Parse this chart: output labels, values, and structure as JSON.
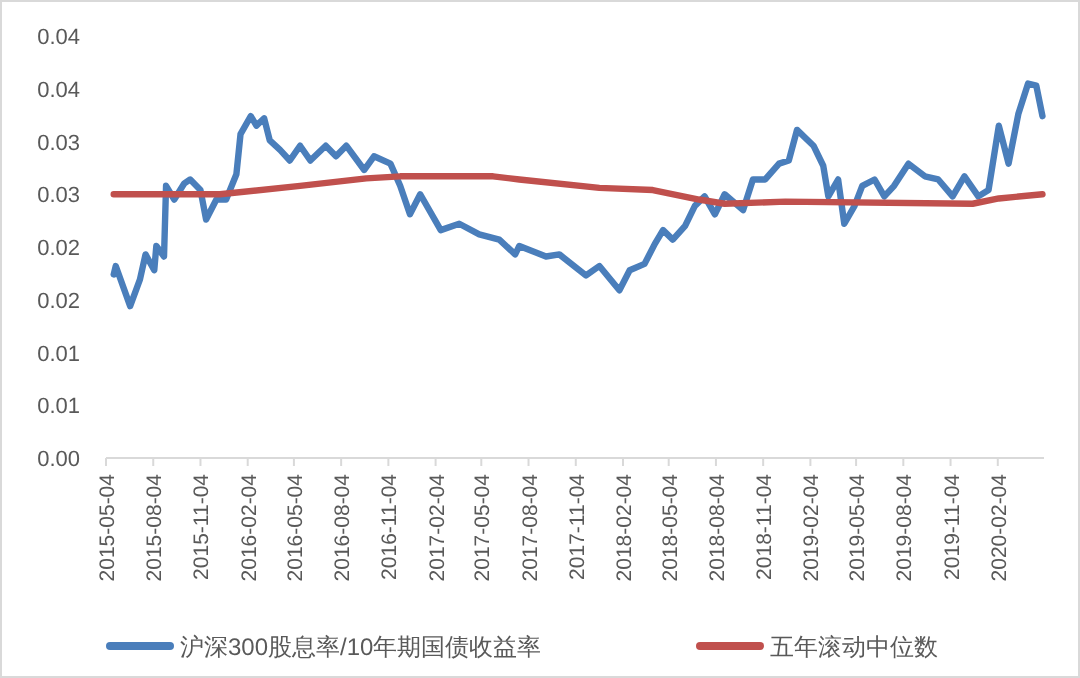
{
  "chart_data": {
    "type": "line",
    "xlim": [
      "2015-05-04",
      "2020-05-04"
    ],
    "ylim": [
      0,
      0.04
    ],
    "xticks": [
      "2015-05-04",
      "2015-08-04",
      "2015-11-04",
      "2016-02-04",
      "2016-05-04",
      "2016-08-04",
      "2016-11-04",
      "2017-02-04",
      "2017-05-04",
      "2017-08-04",
      "2017-11-04",
      "2018-02-04",
      "2018-05-04",
      "2018-08-04",
      "2018-11-04",
      "2019-02-04",
      "2019-05-04",
      "2019-08-04",
      "2019-11-04",
      "2020-02-04"
    ],
    "yticks": [
      {
        "value": 0,
        "label": "0.00"
      },
      {
        "value": 0.005,
        "label": "0.01"
      },
      {
        "value": 0.01,
        "label": "0.01"
      },
      {
        "value": 0.015,
        "label": "0.02"
      },
      {
        "value": 0.02,
        "label": "0.02"
      },
      {
        "value": 0.025,
        "label": "0.03"
      },
      {
        "value": 0.03,
        "label": "0.03"
      },
      {
        "value": 0.035,
        "label": "0.04"
      },
      {
        "value": 0.04,
        "label": "0.04"
      }
    ],
    "grid": false,
    "legend": "bottom",
    "marker": "none",
    "line_style": "solid",
    "series": [
      {
        "name": "沪深300股息率/10年期国债收益率",
        "color": "#4a7ebb",
        "x": [
          "2015-05-19",
          "2015-05-23",
          "2015-06-20",
          "2015-07-09",
          "2015-07-20",
          "2015-08-06",
          "2015-08-10",
          "2015-08-25",
          "2015-08-29",
          "2015-09-14",
          "2015-10-03",
          "2015-10-15",
          "2015-11-04",
          "2015-11-15",
          "2015-12-05",
          "2015-12-24",
          "2016-01-13",
          "2016-01-21",
          "2016-02-10",
          "2016-02-21",
          "2016-03-07",
          "2016-03-18",
          "2016-04-07",
          "2016-04-26",
          "2016-05-16",
          "2016-06-05",
          "2016-07-05",
          "2016-07-25",
          "2016-08-14",
          "2016-09-18",
          "2016-10-07",
          "2016-11-08",
          "2016-11-27",
          "2016-12-16",
          "2017-01-05",
          "2017-02-14",
          "2017-03-22",
          "2017-04-30",
          "2017-06-08",
          "2017-07-09",
          "2017-07-17",
          "2017-09-07",
          "2017-10-03",
          "2017-11-24",
          "2017-12-20",
          "2018-01-28",
          "2018-02-17",
          "2018-03-18",
          "2018-04-07",
          "2018-04-23",
          "2018-05-12",
          "2018-06-05",
          "2018-06-24",
          "2018-07-13",
          "2018-08-02",
          "2018-08-21",
          "2018-09-26",
          "2018-10-15",
          "2018-11-08",
          "2018-12-05",
          "2018-12-24",
          "2019-01-09",
          "2019-02-10",
          "2019-03-01",
          "2019-03-11",
          "2019-03-30",
          "2019-04-11",
          "2019-05-01",
          "2019-05-16",
          "2019-06-09",
          "2019-06-28",
          "2019-07-17",
          "2019-08-14",
          "2019-09-15",
          "2019-10-11",
          "2019-11-08",
          "2019-12-01",
          "2019-12-28",
          "2020-01-17",
          "2020-02-06",
          "2020-02-25",
          "2020-03-15",
          "2020-04-03",
          "2020-04-19",
          "2020-05-01"
        ],
        "values": [
          0.0174,
          0.0182,
          0.0144,
          0.0169,
          0.0193,
          0.0178,
          0.0201,
          0.0191,
          0.0258,
          0.0245,
          0.026,
          0.0264,
          0.0254,
          0.0226,
          0.0245,
          0.0245,
          0.0269,
          0.0307,
          0.0324,
          0.0315,
          0.0322,
          0.0301,
          0.0292,
          0.0282,
          0.0296,
          0.0282,
          0.0296,
          0.0286,
          0.0296,
          0.0273,
          0.0286,
          0.0279,
          0.0258,
          0.0231,
          0.025,
          0.0216,
          0.0222,
          0.0212,
          0.0207,
          0.0193,
          0.0201,
          0.0191,
          0.0193,
          0.0173,
          0.0182,
          0.0159,
          0.0178,
          0.0184,
          0.0203,
          0.0216,
          0.0207,
          0.022,
          0.0239,
          0.0248,
          0.0231,
          0.025,
          0.0235,
          0.0264,
          0.0264,
          0.0279,
          0.0282,
          0.0311,
          0.0296,
          0.0277,
          0.0248,
          0.0264,
          0.0222,
          0.0239,
          0.0258,
          0.0264,
          0.0248,
          0.0258,
          0.0279,
          0.0267,
          0.0264,
          0.0248,
          0.0267,
          0.0248,
          0.0254,
          0.0315,
          0.0279,
          0.0326,
          0.0355,
          0.0353,
          0.0324
        ]
      },
      {
        "name": "五年滚动中位数",
        "color": "#c0504d",
        "x": [
          "2015-05-19",
          "2015-12-12",
          "2016-05-16",
          "2016-09-22",
          "2016-11-27",
          "2017-05-27",
          "2017-07-17",
          "2017-12-20",
          "2018-04-03",
          "2018-07-02",
          "2018-08-21",
          "2018-12-17",
          "2019-12-17",
          "2020-02-06",
          "2020-05-01"
        ],
        "values": [
          0.025,
          0.025,
          0.0258,
          0.0265,
          0.0267,
          0.0267,
          0.0264,
          0.0256,
          0.0254,
          0.0245,
          0.0241,
          0.0243,
          0.0241,
          0.0246,
          0.025
        ]
      }
    ]
  }
}
